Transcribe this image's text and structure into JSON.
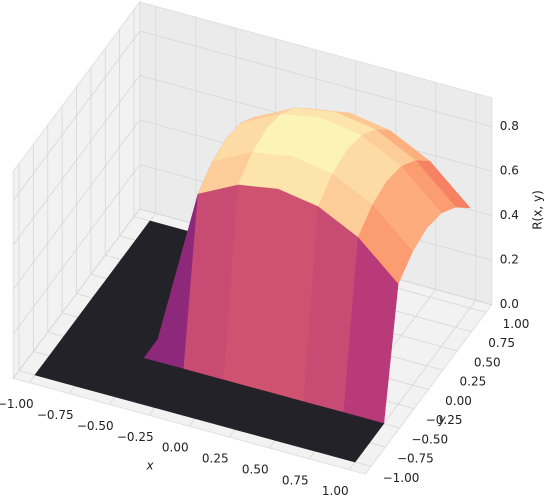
{
  "chart_data": {
    "type": "surface",
    "xlabel": "x",
    "ylabel": "y",
    "zlabel": "R(x, y)",
    "xlim": [
      -1.1,
      1.1
    ],
    "ylim": [
      -1.1,
      1.1
    ],
    "zlim": [
      0,
      0.93
    ],
    "xticks": [
      {
        "value": -1,
        "label": "−1.00"
      },
      {
        "value": -0.75,
        "label": "−0.75"
      },
      {
        "value": -0.5,
        "label": "−0.50"
      },
      {
        "value": -0.25,
        "label": "−0.25"
      },
      {
        "value": 0,
        "label": "0.00"
      },
      0.25,
      {
        "value": 0.5,
        "label": "0.50"
      },
      0.75,
      {
        "value": 1,
        "label": "1.00"
      }
    ],
    "yticks": [
      {
        "value": -1,
        "label": "−1.00"
      },
      {
        "value": -0.75,
        "label": "−0.75"
      },
      {
        "value": -0.5,
        "label": "−0.50"
      },
      {
        "value": -0.25,
        "label": "−0.25"
      },
      {
        "value": 0,
        "label": "0.00"
      },
      0.25,
      {
        "value": 0.5,
        "label": "0.50"
      },
      0.75,
      {
        "value": 1,
        "label": "1.00"
      }
    ],
    "zticks": [
      {
        "value": 0,
        "label": "0.0"
      },
      0.2,
      0.4,
      0.6,
      0.8
    ],
    "x": [
      -1,
      -0.75,
      -0.5,
      -0.25,
      0,
      0.25,
      0.5,
      0.75,
      1
    ],
    "y": [
      -1,
      -0.75,
      -0.5,
      -0.25,
      0,
      0.25,
      0.5,
      0.75,
      1
    ],
    "z": [
      [
        0,
        0,
        0,
        0,
        0,
        0,
        0,
        0,
        0
      ],
      [
        0,
        0,
        0,
        0,
        0,
        0,
        0,
        0,
        0
      ],
      [
        0,
        0,
        0,
        0,
        0,
        0,
        0,
        0,
        0
      ],
      [
        0,
        0,
        0,
        0.7,
        0.79,
        0.82,
        0.79,
        0.7,
        0.54
      ],
      [
        0,
        0,
        0,
        0.76,
        0.85,
        0.88,
        0.85,
        0.76,
        0.6
      ],
      [
        0,
        0,
        0,
        0.78,
        0.87,
        0.9,
        0.87,
        0.78,
        0.62
      ],
      [
        0,
        0,
        0,
        0.76,
        0.85,
        0.88,
        0.85,
        0.76,
        0.6
      ],
      [
        0,
        0,
        0,
        0.7,
        0.79,
        0.82,
        0.79,
        0.7,
        0.54
      ],
      [
        0,
        0,
        0,
        0.61,
        0.7,
        0.73,
        0.7,
        0.61,
        0.45
      ]
    ],
    "colormap": [
      "#000004",
      "#51127c",
      "#b73779",
      "#fc8961",
      "#fcfdbf"
    ],
    "grid": true
  }
}
